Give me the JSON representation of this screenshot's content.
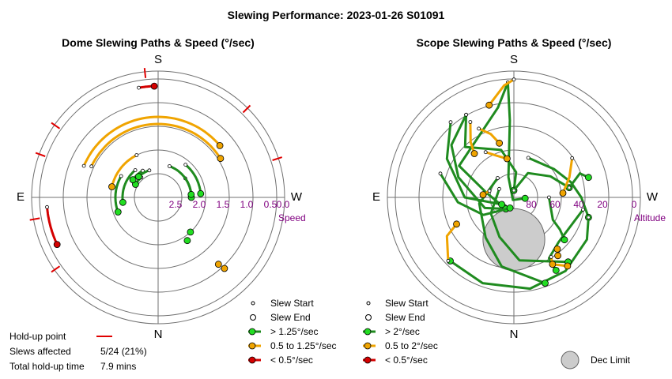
{
  "figure_title": "Slewing Performance: 2023-01-26 S01091",
  "info": {
    "holdup_label": "Hold-up point",
    "slews_label": "Slews affected",
    "slews_value": "5/24 (21%)",
    "time_label": "Total hold-up time",
    "time_value": "7.9 mins"
  },
  "colors": {
    "fast": "#1f8b1f",
    "medium": "#f0a400",
    "slow": "#d40000",
    "holdup": "#e00000",
    "grid": "#707070",
    "tick": "#800080",
    "dec_limit": "#cccccc"
  },
  "chart_data": [
    {
      "type": "polar-path",
      "title": "Dome Slewing Paths & Speed (°/sec)",
      "directions": {
        "top": "S",
        "bottom": "N",
        "left": "E",
        "right": "W"
      },
      "radial_tick_labels": [
        "2.5",
        "2.0",
        "1.5",
        "1.0",
        "0.5",
        "0.0"
      ],
      "radial_unit": "Speed",
      "legend": [
        "Slew Start",
        "Slew End",
        "> 1.25°/sec",
        "0.5 to 1.25°/sec",
        "< 0.5°/sec"
      ],
      "arcs": [
        {
          "r": 1.95,
          "a0": 320,
          "a1": 300,
          "speed": "fast"
        },
        {
          "r": 1.85,
          "a0": 330,
          "a1": 305,
          "speed": "fast"
        },
        {
          "r": 1.9,
          "a0": 342,
          "a1": 317,
          "speed": "fast"
        },
        {
          "r": 1.8,
          "a0": 55,
          "a1": 90,
          "speed": "fast"
        },
        {
          "r": 1.8,
          "a0": 20,
          "a1": 85,
          "speed": "fast"
        },
        {
          "r": 1.6,
          "a0": 40,
          "a1": 85,
          "speed": "fast"
        },
        {
          "r": 1.6,
          "a0": 300,
          "a1": 250,
          "speed": "fast"
        },
        {
          "r": 1.75,
          "a0": 320,
          "a1": 262,
          "speed": "fast"
        },
        {
          "r": 1.5,
          "a0": 333,
          "a1": 283,
          "speed": "medium"
        },
        {
          "r": 0.95,
          "a0": 295,
          "a1": 58,
          "speed": "medium"
        },
        {
          "r": 0.8,
          "a0": 293,
          "a1": 50,
          "speed": "medium"
        },
        {
          "r": 0.15,
          "a0": 265,
          "a1": 245,
          "speed": "slow"
        },
        {
          "r": 0.15,
          "a0": 350,
          "a1": 358,
          "speed": "slow"
        }
      ],
      "holdups": [
        {
          "r": 0.0,
          "a": 354
        },
        {
          "r": 0.0,
          "a": 305
        },
        {
          "r": 0.0,
          "a": 290
        },
        {
          "r": 0.0,
          "a": 260
        },
        {
          "r": 0.0,
          "a": 235
        },
        {
          "r": 0.0,
          "a": 45
        },
        {
          "r": 0.0,
          "a": 72
        }
      ],
      "extra_points": [
        {
          "r": 1.4,
          "a": 146,
          "speed": "fast"
        },
        {
          "r": 1.5,
          "a": 137,
          "speed": "fast"
        },
        {
          "r": 0.6,
          "a": 138,
          "speed": "medium"
        },
        {
          "r": 0.45,
          "a": 137,
          "speed": "medium"
        }
      ]
    },
    {
      "type": "polar-path",
      "title": "Scope Slewing Paths & Speed (°/sec)",
      "directions": {
        "top": "S",
        "bottom": "N",
        "left": "E",
        "right": "W"
      },
      "radial_tick_labels": [
        "80",
        "60",
        "40",
        "20",
        "0"
      ],
      "radial_unit": "Altitude",
      "legend": [
        "Slew Start",
        "Slew End",
        "> 2°/sec",
        "0.5 to 2°/sec",
        "< 0.5°/sec",
        "Dec Limit"
      ],
      "dec_limit": {
        "alt": 60,
        "a": 180,
        "radius_deg": 22
      },
      "paths": [
        {
          "speed": "fast",
          "pts": [
            [
              8,
              357
            ],
            [
              35,
              357
            ],
            [
              75,
              345
            ],
            [
              88,
              200
            ],
            [
              82,
              95
            ]
          ]
        },
        {
          "speed": "fast",
          "pts": [
            [
              8,
              357
            ],
            [
              25,
              350
            ],
            [
              45,
              300
            ],
            [
              70,
              280
            ],
            [
              80,
              225
            ]
          ]
        },
        {
          "speed": "fast",
          "pts": [
            [
              22,
              330
            ],
            [
              40,
              316
            ],
            [
              55,
              345
            ],
            [
              72,
              5
            ],
            [
              85,
              0
            ]
          ]
        },
        {
          "speed": "fast",
          "pts": [
            [
              22,
              330
            ],
            [
              32,
              310
            ],
            [
              48,
              290
            ],
            [
              68,
              250
            ],
            [
              80,
              215
            ]
          ]
        },
        {
          "speed": "fast",
          "pts": [
            [
              35,
              288
            ],
            [
              50,
              265
            ],
            [
              65,
              240
            ],
            [
              82,
              200
            ]
          ]
        },
        {
          "speed": "fast",
          "pts": [
            [
              20,
              320
            ],
            [
              35,
              300
            ],
            [
              55,
              270
            ],
            [
              80,
              240
            ]
          ]
        },
        {
          "speed": "fast",
          "pts": [
            [
              60,
              20
            ],
            [
              55,
              55
            ],
            [
              48,
              75
            ],
            [
              42,
              90
            ],
            [
              35,
              105
            ]
          ]
        },
        {
          "speed": "fast",
          "pts": [
            [
              35,
              105
            ],
            [
              30,
              120
            ],
            [
              26,
              145
            ],
            [
              24,
              170
            ],
            [
              25,
              200
            ],
            [
              26,
              225
            ]
          ]
        },
        {
          "speed": "fast",
          "pts": [
            [
              85,
              0
            ],
            [
              70,
              30
            ],
            [
              60,
              60
            ],
            [
              50,
              80
            ]
          ]
        },
        {
          "speed": "fast",
          "pts": [
            [
              50,
              80
            ],
            [
              40,
              70
            ],
            [
              35,
              75
            ]
          ]
        },
        {
          "speed": "fast",
          "pts": [
            [
              78,
              300
            ],
            [
              70,
              235
            ],
            [
              60,
              200
            ],
            [
              45,
              175
            ],
            [
              30,
              140
            ]
          ]
        },
        {
          "speed": "fast",
          "pts": [
            [
              72,
              320
            ],
            [
              65,
              260
            ],
            [
              55,
              215
            ],
            [
              40,
              190
            ],
            [
              25,
              160
            ]
          ]
        },
        {
          "speed": "fast",
          "pts": [
            [
              40,
              100
            ],
            [
              45,
              135
            ],
            [
              40,
              150
            ],
            [
              30,
              150
            ]
          ]
        },
        {
          "speed": "fast",
          "pts": [
            [
              65,
              90
            ],
            [
              58,
              120
            ],
            [
              50,
              125
            ],
            [
              43,
              130
            ]
          ]
        },
        {
          "speed": "medium",
          "pts": [
            [
              6,
              360
            ],
            [
              10,
              355
            ],
            [
              22,
              345
            ]
          ]
        },
        {
          "speed": "medium",
          "pts": [
            [
              28,
              330
            ],
            [
              40,
              322
            ],
            [
              48,
              318
            ]
          ]
        },
        {
          "speed": "medium",
          "pts": [
            [
              35,
              333
            ],
            [
              42,
              340
            ],
            [
              50,
              345
            ]
          ]
        },
        {
          "speed": "medium",
          "pts": [
            [
              52,
              328
            ],
            [
              58,
              338
            ],
            [
              62,
              350
            ]
          ]
        },
        {
          "speed": "medium",
          "pts": [
            [
              72,
              285
            ],
            [
              68,
              275
            ]
          ]
        },
        {
          "speed": "medium",
          "pts": [
            [
              40,
              56
            ],
            [
              48,
              70
            ],
            [
              55,
              85
            ]
          ]
        },
        {
          "speed": "medium",
          "pts": [
            [
              25,
              226
            ],
            [
              35,
              240
            ],
            [
              45,
              245
            ]
          ]
        },
        {
          "speed": "medium",
          "pts": [
            [
              40,
              148
            ],
            [
              35,
              150
            ],
            [
              28,
              142
            ]
          ]
        }
      ],
      "extra_points": [
        {
          "r": 38,
          "a": 143,
          "speed": "medium"
        },
        {
          "r": 42,
          "a": 140,
          "speed": "medium"
        },
        {
          "r": 35,
          "a": 150,
          "speed": "medium"
        }
      ]
    }
  ]
}
